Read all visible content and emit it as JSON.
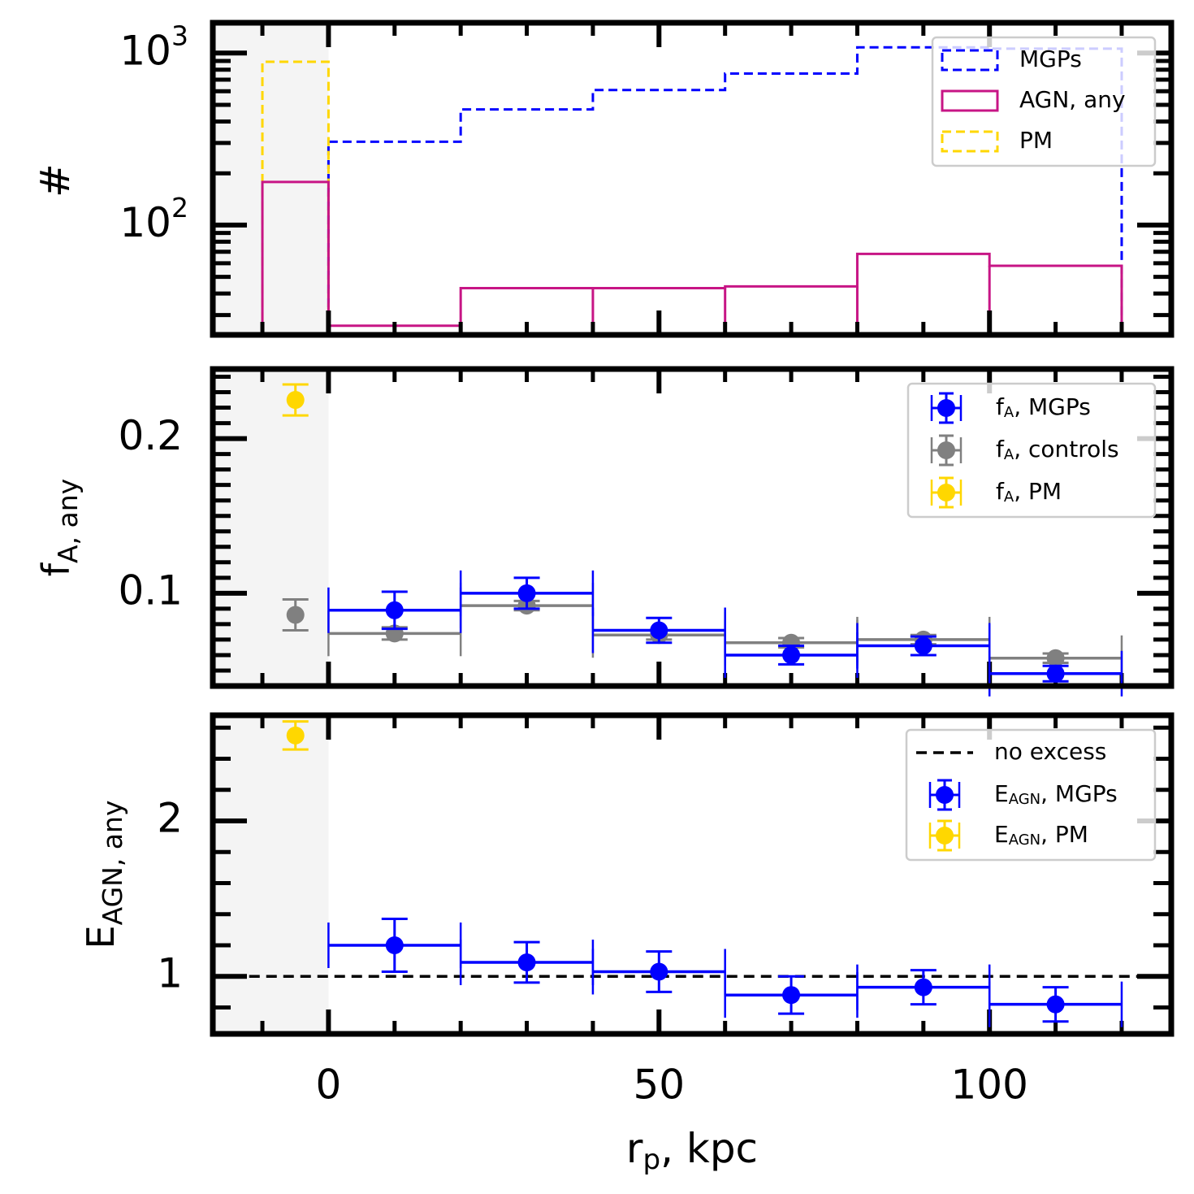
{
  "figure": {
    "xlabel_main": "r",
    "xlabel_sub": "p",
    "xlabel_suffix": ", kpc",
    "xticks": [
      "0",
      "50",
      "100"
    ]
  },
  "chart_data": [
    {
      "type": "histogram",
      "ylabel": "#",
      "yscale": "log",
      "ylim": [
        23,
        1500
      ],
      "xlim": [
        -17.5,
        127.5
      ],
      "ytick_labels": [
        {
          "base": "10",
          "exp": "2",
          "value": 100
        },
        {
          "base": "10",
          "exp": "3",
          "value": 1000
        }
      ],
      "pm_bin": [
        -10,
        0
      ],
      "bin_edges": [
        0,
        20,
        40,
        60,
        80,
        100,
        120
      ],
      "series": [
        {
          "name": "MGPs",
          "style": "dashed",
          "color": "#0000ff",
          "values": [
            305,
            470,
            610,
            760,
            1080,
            1060
          ]
        },
        {
          "name": "AGN, any",
          "style": "solid",
          "color": "#c71585",
          "pm_value": 178,
          "values": [
            26,
            43,
            43,
            44,
            68,
            58
          ]
        },
        {
          "name": "PM",
          "style": "dashed",
          "color": "#ffd700",
          "pm_value": 890
        }
      ],
      "legend": "upper right"
    },
    {
      "type": "errorbar",
      "ylabel_main": "f",
      "ylabel_sub": "A, any",
      "ylim": [
        0.04,
        0.245
      ],
      "yticks": [
        {
          "label": "0.1",
          "value": 0.1
        },
        {
          "label": "0.2",
          "value": 0.2
        }
      ],
      "legend": "upper right",
      "series": [
        {
          "label_main": "f",
          "label_sub": "A",
          "label_rest": ", MGPs",
          "color": "#0000ff",
          "points": [
            {
              "x": 10,
              "y": 0.089,
              "xerr": 10,
              "yerr": 0.012
            },
            {
              "x": 30,
              "y": 0.1,
              "xerr": 10,
              "yerr": 0.01
            },
            {
              "x": 50,
              "y": 0.076,
              "xerr": 10,
              "yerr": 0.008
            },
            {
              "x": 70,
              "y": 0.06,
              "xerr": 10,
              "yerr": 0.006
            },
            {
              "x": 90,
              "y": 0.066,
              "xerr": 10,
              "yerr": 0.006
            },
            {
              "x": 110,
              "y": 0.048,
              "xerr": 10,
              "yerr": 0.005
            }
          ]
        },
        {
          "label_main": "f",
          "label_sub": "A",
          "label_rest": ", controls",
          "color": "#808080",
          "points": [
            {
              "x": -5,
              "y": 0.086,
              "xerr": 0,
              "yerr": 0.01
            },
            {
              "x": 10,
              "y": 0.074,
              "xerr": 10,
              "yerr": 0.004
            },
            {
              "x": 30,
              "y": 0.092,
              "xerr": 10,
              "yerr": 0.003
            },
            {
              "x": 50,
              "y": 0.073,
              "xerr": 10,
              "yerr": 0.003
            },
            {
              "x": 70,
              "y": 0.068,
              "xerr": 10,
              "yerr": 0.003
            },
            {
              "x": 90,
              "y": 0.07,
              "xerr": 10,
              "yerr": 0.003
            },
            {
              "x": 110,
              "y": 0.058,
              "xerr": 10,
              "yerr": 0.003
            }
          ]
        },
        {
          "label_main": "f",
          "label_sub": "A",
          "label_rest": ", PM",
          "color": "#ffd700",
          "points": [
            {
              "x": -5,
              "y": 0.225,
              "xerr": 0,
              "yerr": 0.01
            }
          ]
        }
      ]
    },
    {
      "type": "errorbar",
      "ylabel_main": "E",
      "ylabel_sub": "AGN, any",
      "ylim": [
        0.63,
        2.68
      ],
      "yticks": [
        {
          "label": "1",
          "value": 1
        },
        {
          "label": "2",
          "value": 2
        }
      ],
      "reference_line": {
        "label": "no excess",
        "y": 1,
        "style": "dashed",
        "color": "#000000"
      },
      "legend": "upper right",
      "series": [
        {
          "label_main": "E",
          "label_sub": "AGN",
          "label_rest": ", MGPs",
          "color": "#0000ff",
          "points": [
            {
              "x": 10,
              "y": 1.2,
              "xerr": 10,
              "yerr": 0.17
            },
            {
              "x": 30,
              "y": 1.09,
              "xerr": 10,
              "yerr": 0.13
            },
            {
              "x": 50,
              "y": 1.03,
              "xerr": 10,
              "yerr": 0.13
            },
            {
              "x": 70,
              "y": 0.88,
              "xerr": 10,
              "yerr": 0.12
            },
            {
              "x": 90,
              "y": 0.93,
              "xerr": 10,
              "yerr": 0.11
            },
            {
              "x": 110,
              "y": 0.82,
              "xerr": 10,
              "yerr": 0.11
            }
          ]
        },
        {
          "label_main": "E",
          "label_sub": "AGN",
          "label_rest": ", PM",
          "color": "#ffd700",
          "points": [
            {
              "x": -5,
              "y": 2.55,
              "xerr": 0,
              "yerr": 0.09
            }
          ]
        }
      ]
    }
  ]
}
